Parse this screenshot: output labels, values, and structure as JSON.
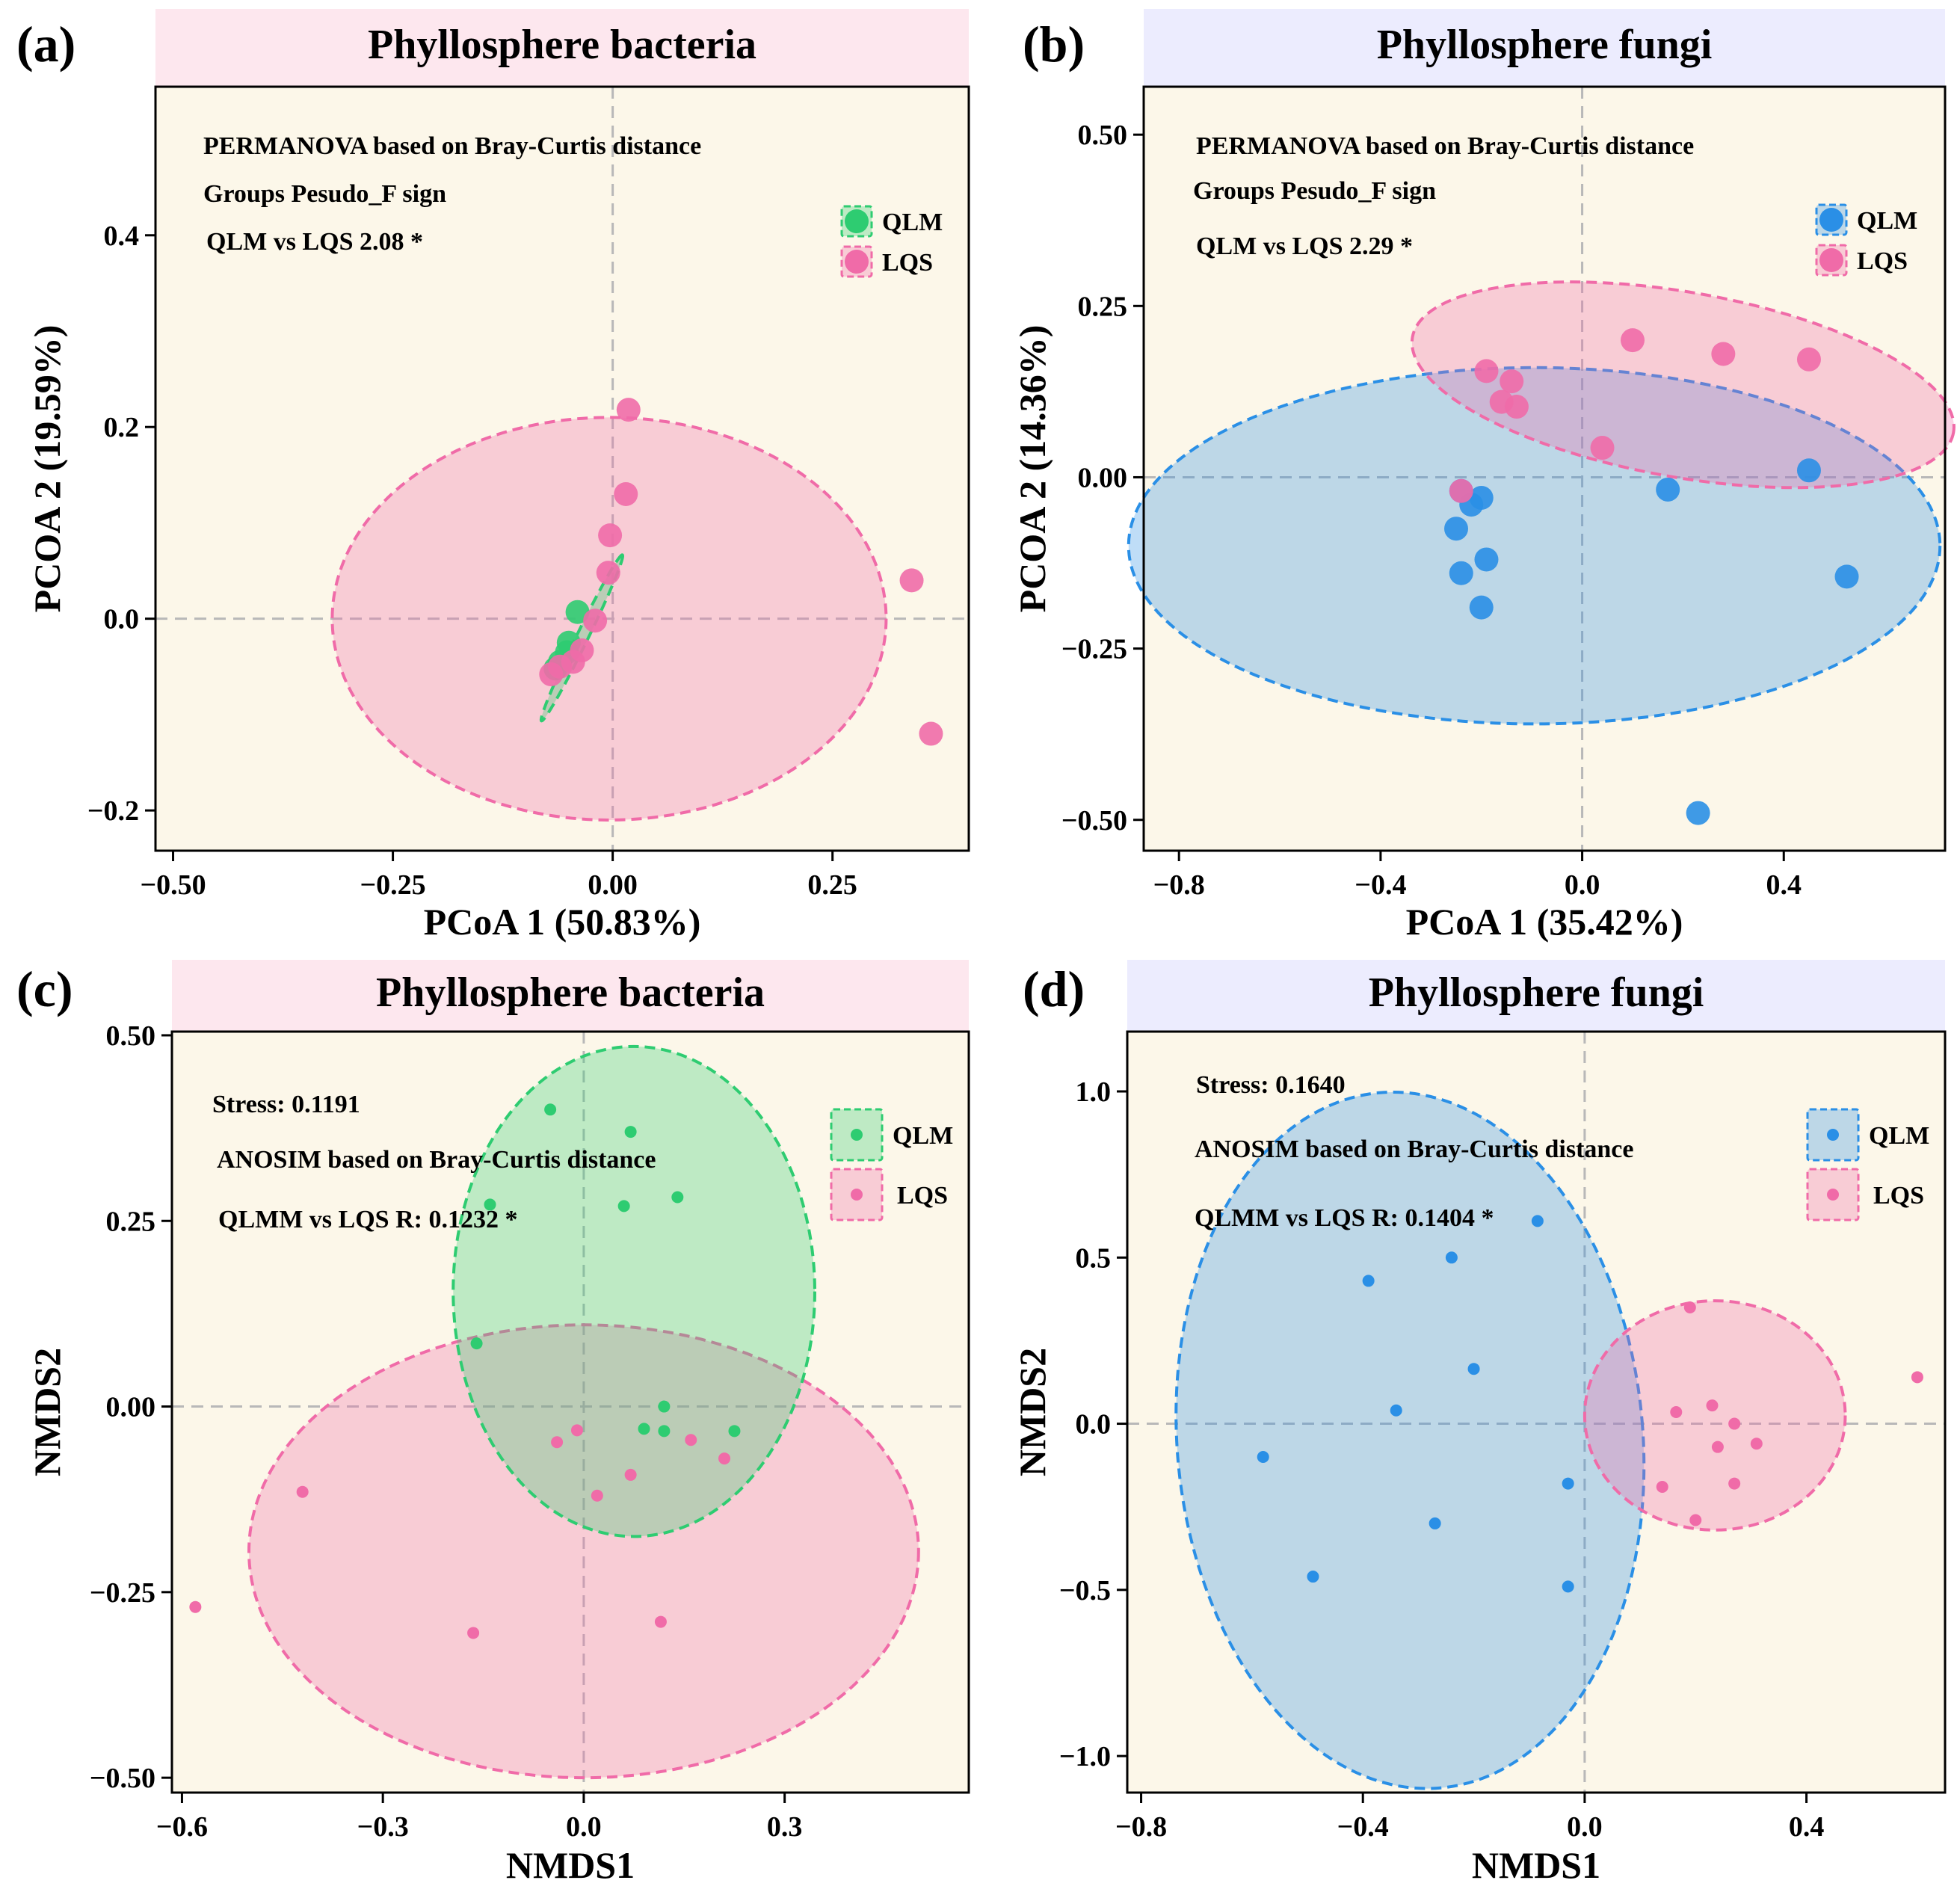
{
  "colors": {
    "plot_bg": "#fcf7e9",
    "bacteria_header": "#fde7ee",
    "fungi_header": "#ececfe",
    "qlm_bacteria": "#2ecc71",
    "qlm_fungi": "#2a8fe6",
    "lqs": "#f06ba8",
    "lqs_light": "#f59ac2",
    "zero_line": "#b8b8b8",
    "axis": "#000000"
  },
  "chart_data": [
    {
      "panel_label": "(a)",
      "title": "Phyllosphere bacteria",
      "header_color": "#fde7ee",
      "type": "scatter",
      "xlabel": "PCoA 1 (50.83%)",
      "ylabel": "PCOA 2 (19.59%)",
      "xlim": [
        -0.52,
        0.405
      ],
      "ylim": [
        -0.242,
        0.555
      ],
      "xticks": [
        -0.5,
        -0.25,
        0.0,
        0.25
      ],
      "xtick_labels": [
        "−0.50",
        "−0.25",
        "0.00",
        "0.25"
      ],
      "yticks": [
        -0.2,
        0.0,
        0.2,
        0.4
      ],
      "ytick_labels": [
        "−0.2",
        "0.0",
        "0.2",
        "0.4"
      ],
      "annotations": [
        "PERMANOVA based on Bray-Curtis distance",
        "Groups   Pesudo_F   sign",
        "QLM vs LQS   2.08 *"
      ],
      "legend": [
        {
          "label": "QLM",
          "color": "#2ecc71"
        },
        {
          "label": "LQS",
          "color": "#f06ba8"
        }
      ],
      "marker_size": "large",
      "series": [
        {
          "name": "QLM",
          "color": "#2ecc71",
          "points": [
            [
              -0.04,
              0.007
            ],
            [
              -0.05,
              -0.025
            ],
            [
              -0.06,
              -0.045
            ],
            [
              -0.065,
              -0.052
            ],
            [
              -0.052,
              -0.035
            ]
          ],
          "ellipse": {
            "cx": -0.035,
            "cy": -0.02,
            "rx": 0.105,
            "ry": 0.006,
            "angle_deg": 64
          }
        },
        {
          "name": "LQS",
          "color": "#f06ba8",
          "points": [
            [
              0.018,
              0.218
            ],
            [
              0.015,
              0.13
            ],
            [
              -0.003,
              0.087
            ],
            [
              -0.005,
              0.048
            ],
            [
              -0.02,
              -0.002
            ],
            [
              -0.035,
              -0.033
            ],
            [
              -0.045,
              -0.045
            ],
            [
              -0.06,
              -0.05
            ],
            [
              -0.07,
              -0.058
            ],
            [
              0.34,
              0.04
            ],
            [
              0.362,
              -0.12
            ]
          ],
          "ellipse": {
            "cx": -0.004,
            "cy": 0.0,
            "rx": 0.315,
            "ry": 0.21,
            "angle_deg": 0
          }
        }
      ]
    },
    {
      "panel_label": "(b)",
      "title": "Phyllosphere fungi",
      "header_color": "#ececfe",
      "type": "scatter",
      "xlabel": "PCoA 1 (35.42%)",
      "ylabel": "PCOA 2 (14.36%)",
      "xlim": [
        -0.87,
        0.72
      ],
      "ylim": [
        -0.545,
        0.57
      ],
      "xticks": [
        -0.8,
        -0.4,
        0.0,
        0.4
      ],
      "xtick_labels": [
        "−0.8",
        "−0.4",
        "0.0",
        "0.4"
      ],
      "yticks": [
        -0.5,
        -0.25,
        0.0,
        0.25,
        0.5
      ],
      "ytick_labels": [
        "−0.50",
        "−0.25",
        "0.00",
        "0.25",
        "0.50"
      ],
      "annotations": [
        "PERMANOVA based on Bray-Curtis distance",
        "Groups   Pesudo_F   sign",
        "QLM vs LQS   2.29 *"
      ],
      "legend": [
        {
          "label": "QLM",
          "color": "#2a8fe6"
        },
        {
          "label": "LQS",
          "color": "#f06ba8"
        }
      ],
      "marker_size": "large",
      "series": [
        {
          "name": "QLM",
          "color": "#2a8fe6",
          "points": [
            [
              -0.22,
              -0.04
            ],
            [
              -0.2,
              -0.03
            ],
            [
              -0.25,
              -0.075
            ],
            [
              -0.19,
              -0.12
            ],
            [
              -0.24,
              -0.14
            ],
            [
              -0.2,
              -0.19
            ],
            [
              0.17,
              -0.018
            ],
            [
              0.45,
              0.01
            ],
            [
              0.525,
              -0.145
            ],
            [
              0.23,
              -0.49
            ],
            [
              -0.24,
              -0.02
            ]
          ],
          "ellipse": {
            "cx": -0.095,
            "cy": -0.1,
            "rx": 0.805,
            "ry": 0.26,
            "angle_deg": 0
          }
        },
        {
          "name": "LQS",
          "color": "#f06ba8",
          "points": [
            [
              0.1,
              0.2
            ],
            [
              0.28,
              0.18
            ],
            [
              0.45,
              0.172
            ],
            [
              -0.19,
              0.155
            ],
            [
              -0.14,
              0.14
            ],
            [
              -0.16,
              0.11
            ],
            [
              -0.13,
              0.103
            ],
            [
              0.04,
              0.043
            ],
            [
              -0.24,
              -0.02
            ]
          ],
          "ellipse": {
            "cx": 0.2,
            "cy": 0.135,
            "rx": 0.545,
            "ry": 0.135,
            "angle_deg": -10
          }
        }
      ]
    },
    {
      "panel_label": "(c)",
      "title": "Phyllosphere bacteria",
      "header_color": "#fde7ee",
      "type": "scatter",
      "xlabel": "NMDS1",
      "ylabel": "NMDS2",
      "xlim": [
        -0.615,
        0.575
      ],
      "ylim": [
        -0.52,
        0.505
      ],
      "xticks": [
        -0.6,
        -0.3,
        0.0,
        0.3
      ],
      "xtick_labels": [
        "−0.6",
        "−0.3",
        "0.0",
        "0.3"
      ],
      "yticks": [
        -0.5,
        -0.25,
        0.0,
        0.25,
        0.5
      ],
      "ytick_labels": [
        "−0.50",
        "−0.25",
        "0.00",
        "0.25",
        "0.50"
      ],
      "annotations": [
        "Stress: 0.1191",
        "ANOSIM based on Bray-Curtis distance",
        "QLMM vs LQS R: 0.1232 *"
      ],
      "legend": [
        {
          "label": "QLM",
          "color": "#2ecc71"
        },
        {
          "label": "LQS",
          "color": "#f06ba8"
        }
      ],
      "marker_size": "small",
      "series": [
        {
          "name": "QLM",
          "color": "#2ecc71",
          "points": [
            [
              -0.05,
              0.4
            ],
            [
              0.07,
              0.37
            ],
            [
              -0.14,
              0.272
            ],
            [
              0.06,
              0.27
            ],
            [
              0.14,
              0.282
            ],
            [
              -0.16,
              0.085
            ],
            [
              0.12,
              0.0
            ],
            [
              0.09,
              -0.03
            ],
            [
              0.12,
              -0.033
            ],
            [
              0.225,
              -0.033
            ]
          ],
          "ellipse": {
            "cx": 0.075,
            "cy": 0.155,
            "rx": 0.27,
            "ry": 0.33,
            "angle_deg": 0
          }
        },
        {
          "name": "LQS",
          "color": "#f06ba8",
          "points": [
            [
              -0.58,
              -0.27
            ],
            [
              -0.42,
              -0.115
            ],
            [
              -0.165,
              -0.305
            ],
            [
              -0.04,
              -0.048
            ],
            [
              -0.01,
              -0.032
            ],
            [
              0.02,
              -0.12
            ],
            [
              0.07,
              -0.092
            ],
            [
              0.115,
              -0.29
            ],
            [
              0.16,
              -0.045
            ],
            [
              0.21,
              -0.07
            ]
          ],
          "ellipse": {
            "cx": 0.0,
            "cy": -0.195,
            "rx": 0.5,
            "ry": 0.305,
            "angle_deg": 0
          }
        }
      ]
    },
    {
      "panel_label": "(d)",
      "title": "Phyllosphere fungi",
      "header_color": "#ececfe",
      "type": "scatter",
      "xlabel": "NMDS1",
      "ylabel": "NMDS2",
      "xlim": [
        -0.825,
        0.65
      ],
      "ylim": [
        -1.11,
        1.18
      ],
      "xticks": [
        -0.8,
        -0.4,
        0.0,
        0.4
      ],
      "xtick_labels": [
        "−0.8",
        "−0.4",
        "0.0",
        "0.4"
      ],
      "yticks": [
        -1.0,
        -0.5,
        0.0,
        0.5,
        1.0
      ],
      "ytick_labels": [
        "−1.0",
        "−0.5",
        "0.0",
        "0.5",
        "1.0"
      ],
      "annotations": [
        "Stress: 0.1640",
        "ANOSIM based on Bray-Curtis distance",
        "QLMM vs LQS R: 0.1404 *"
      ],
      "legend": [
        {
          "label": "QLM",
          "color": "#2a8fe6"
        },
        {
          "label": "LQS",
          "color": "#f06ba8"
        }
      ],
      "marker_size": "small",
      "series": [
        {
          "name": "QLM",
          "color": "#2a8fe6",
          "points": [
            [
              -0.085,
              0.61
            ],
            [
              -0.24,
              0.5
            ],
            [
              -0.39,
              0.43
            ],
            [
              -0.2,
              0.165
            ],
            [
              -0.34,
              0.04
            ],
            [
              -0.58,
              -0.1
            ],
            [
              -0.03,
              -0.18
            ],
            [
              -0.27,
              -0.3
            ],
            [
              -0.49,
              -0.46
            ],
            [
              -0.03,
              -0.49
            ]
          ],
          "ellipse": {
            "cx": -0.315,
            "cy": -0.05,
            "rx": 0.42,
            "ry": 1.05,
            "angle_deg": 5
          }
        },
        {
          "name": "LQS",
          "color": "#f06ba8",
          "points": [
            [
              0.19,
              0.35
            ],
            [
              0.165,
              0.035
            ],
            [
              0.23,
              0.055
            ],
            [
              0.27,
              0.0
            ],
            [
              0.24,
              -0.07
            ],
            [
              0.31,
              -0.06
            ],
            [
              0.14,
              -0.19
            ],
            [
              0.27,
              -0.18
            ],
            [
              0.2,
              -0.29
            ],
            [
              0.6,
              0.14
            ]
          ],
          "ellipse": {
            "cx": 0.235,
            "cy": 0.025,
            "rx": 0.235,
            "ry": 0.345,
            "angle_deg": 0
          }
        }
      ]
    }
  ]
}
